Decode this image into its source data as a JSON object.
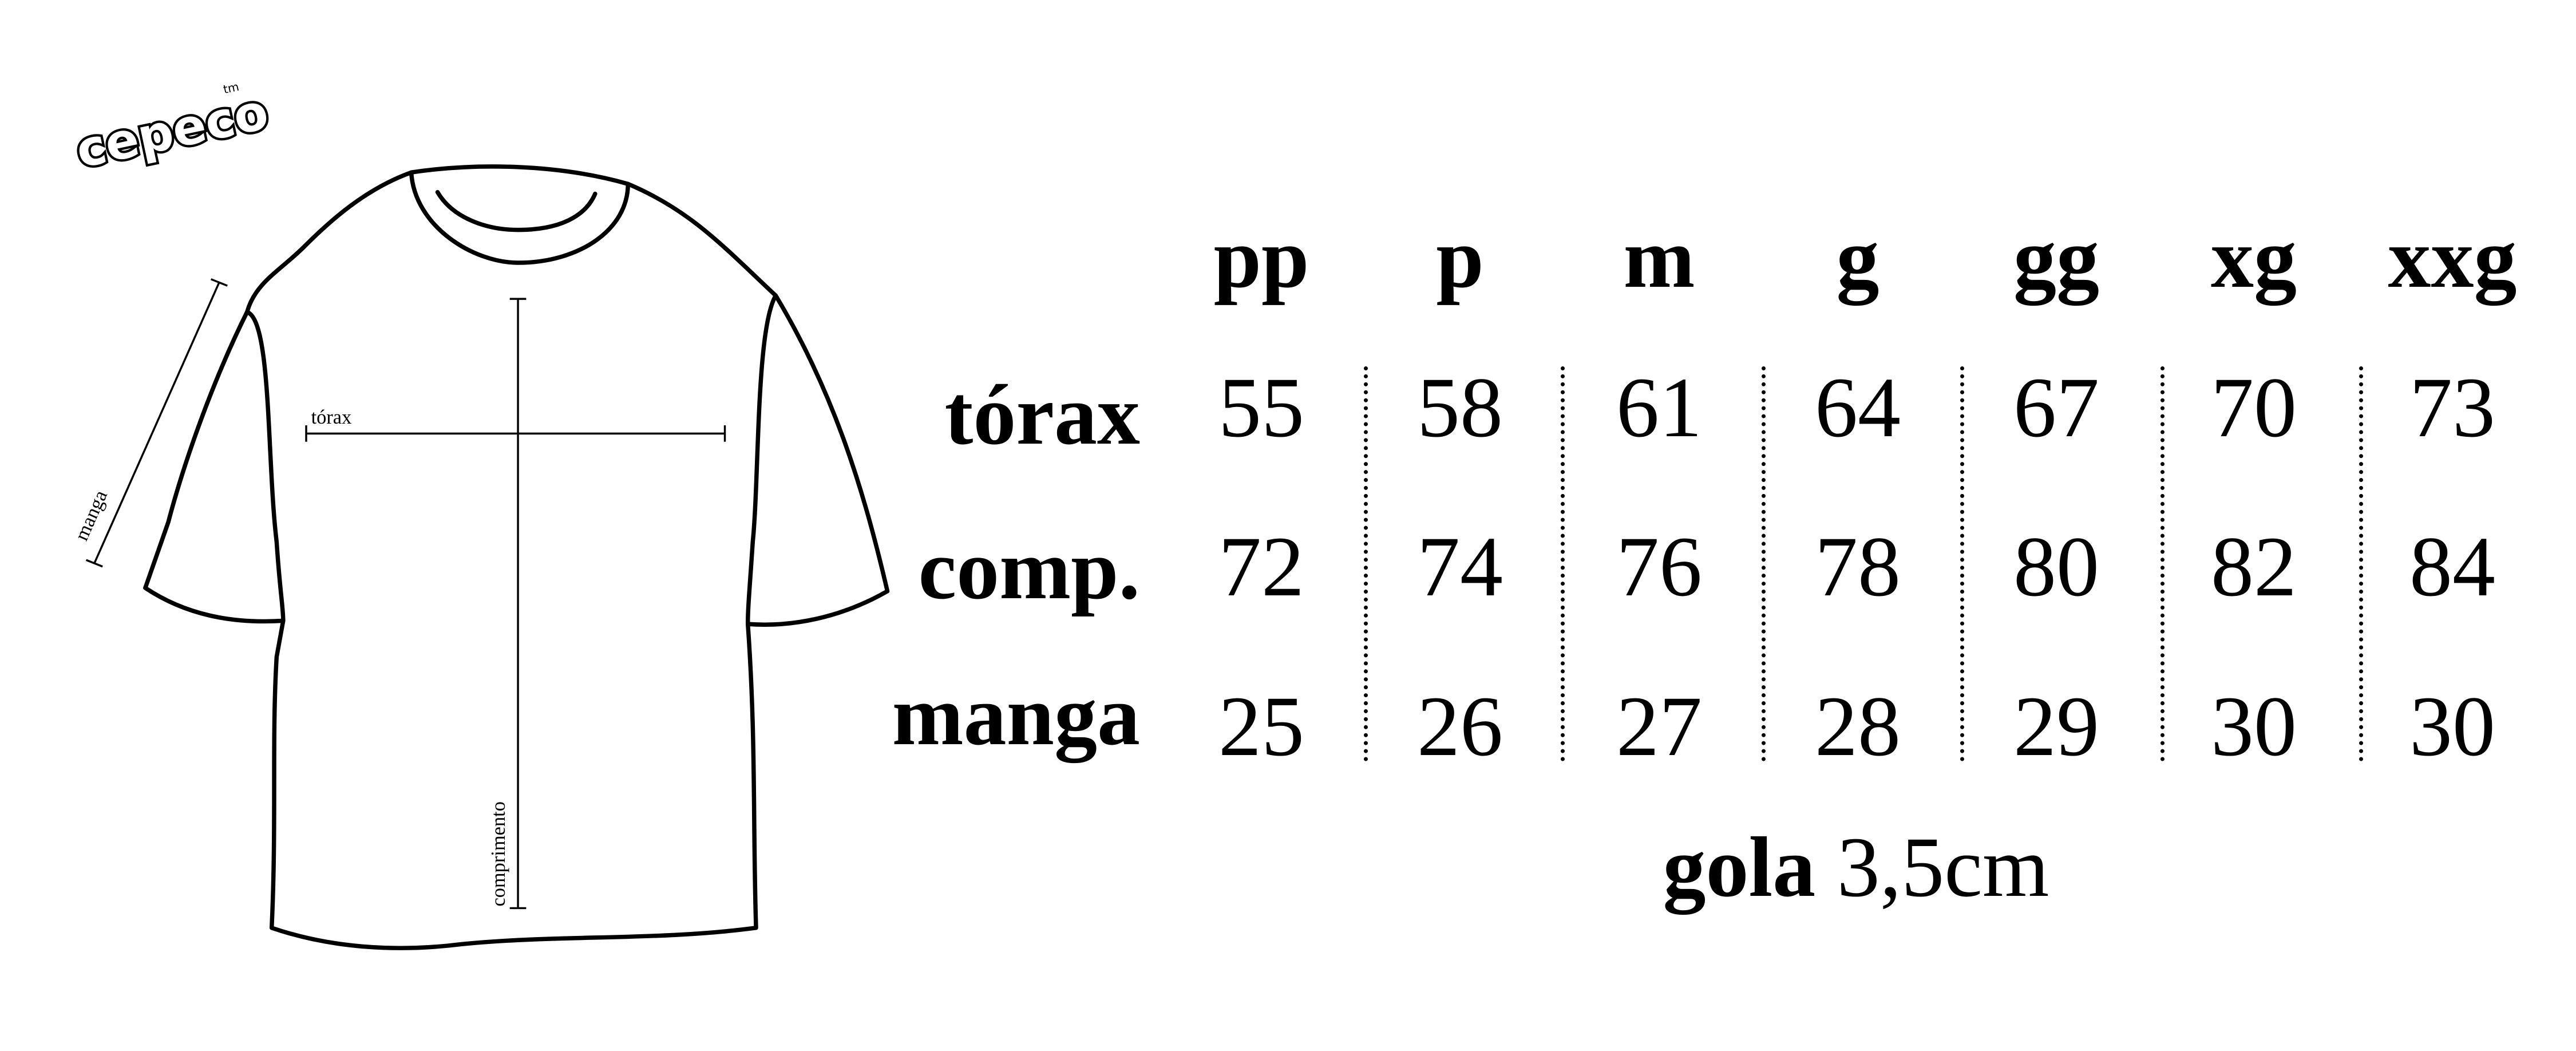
{
  "logo": {
    "text": "cepeco",
    "mark": "tm"
  },
  "diagram": {
    "chest_label": "tórax",
    "sleeve_label": "manga",
    "length_label": "comprimento"
  },
  "table": {
    "sizes": [
      "pp",
      "p",
      "m",
      "g",
      "gg",
      "xg",
      "xxg"
    ],
    "rows": [
      {
        "label": "tórax",
        "values": [
          "55",
          "58",
          "61",
          "64",
          "67",
          "70",
          "73"
        ]
      },
      {
        "label": "comp.",
        "values": [
          "72",
          "74",
          "76",
          "78",
          "80",
          "82",
          "84"
        ]
      },
      {
        "label": "manga",
        "values": [
          "25",
          "26",
          "27",
          "28",
          "29",
          "30",
          "30"
        ]
      }
    ]
  },
  "footer": {
    "label": "gola",
    "value": "3,5cm"
  }
}
